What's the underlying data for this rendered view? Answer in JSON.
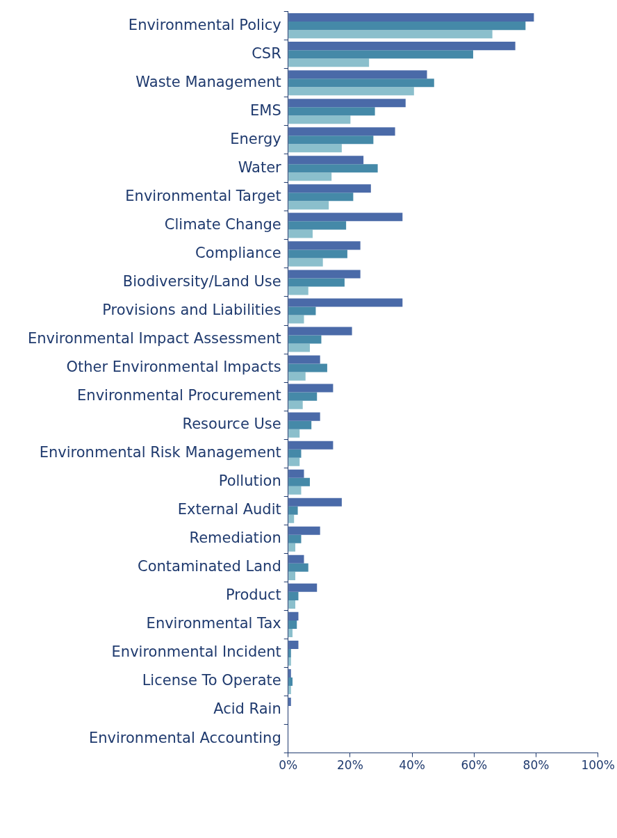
{
  "chart_data": {
    "type": "bar",
    "orientation": "horizontal",
    "categories": [
      "Environmental Policy",
      "CSR",
      "Waste Management",
      "EMS",
      "Energy",
      "Water",
      "Environmental Target",
      "Climate Change",
      "Compliance",
      "Biodiversity/Land Use",
      "Provisions and Liabilities",
      "Environmental Impact Assessment",
      "Other Environmental Impacts",
      "Environmental Procurement",
      "Resource Use",
      "Environmental Risk Management",
      "Pollution",
      "External Audit",
      "Remediation",
      "Contaminated Land",
      "Product",
      "Environmental Tax",
      "Environmental Incident",
      "License To Operate",
      "Acid Rain",
      "Environmental Accounting"
    ],
    "series": [
      {
        "color": "#4a6aa8",
        "values": [
          79.3,
          73.3,
          44.8,
          37.9,
          34.5,
          24.3,
          26.7,
          36.9,
          23.3,
          23.3,
          36.9,
          20.6,
          10.3,
          14.5,
          10.3,
          14.5,
          5.1,
          17.3,
          10.3,
          5.1,
          9.3,
          3.3,
          3.3,
          0.9,
          0.9,
          0
        ]
      },
      {
        "color": "#4589a8",
        "values": [
          76.6,
          59.7,
          47.1,
          28,
          27.5,
          28.9,
          21,
          18.7,
          19.1,
          18.2,
          8.9,
          10.7,
          12.6,
          9.3,
          7.5,
          4.2,
          7,
          3.1,
          4.2,
          6.5,
          3.3,
          2.8,
          0.9,
          1.4,
          0,
          0
        ]
      },
      {
        "color": "#8bbfcc",
        "values": [
          65.9,
          26.1,
          40.6,
          20.1,
          17.3,
          14,
          13.1,
          7.9,
          11.2,
          6.5,
          5.1,
          7,
          5.6,
          4.7,
          3.7,
          3.7,
          4.2,
          1.9,
          2.3,
          2.3,
          2.3,
          1.4,
          0.9,
          0.9,
          0,
          0
        ]
      }
    ],
    "xlim": [
      0,
      100
    ],
    "xticks": [
      {
        "value": 0,
        "label": "0%"
      },
      {
        "value": 20,
        "label": "20%"
      },
      {
        "value": 40,
        "label": "40%"
      },
      {
        "value": 60,
        "label": "60%"
      },
      {
        "value": 80,
        "label": "80%"
      },
      {
        "value": 100,
        "label": "100%"
      }
    ],
    "grid": false,
    "legend": false
  }
}
